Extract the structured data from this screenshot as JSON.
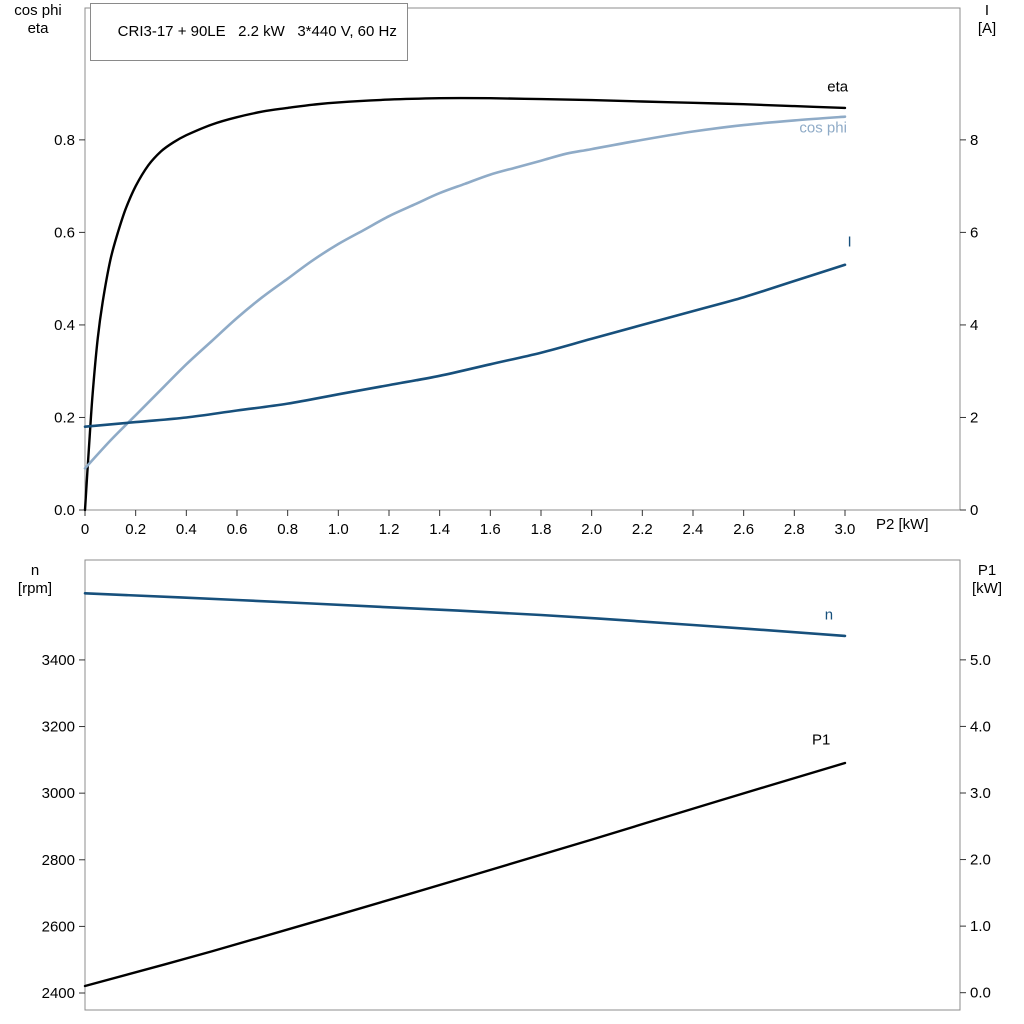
{
  "title_box": {
    "text": "CRI3-17 + 90LE   2.2 kW   3*440 V, 60 Hz"
  },
  "labels": {
    "top_left": [
      "cos phi",
      "eta"
    ],
    "top_right": [
      "I",
      "[A]"
    ],
    "x_axis": "P2 [kW]",
    "bottom_left": [
      "n",
      "[rpm]"
    ],
    "bottom_right": [
      "P1",
      "[kW]"
    ]
  },
  "colors": {
    "black": "#000000",
    "dark_blue": "#17507c",
    "light_blue": "#8fabc7",
    "frame_gray": "#8c8c8c",
    "tick_color": "#333333"
  },
  "chart_data": [
    {
      "type": "line",
      "title": "CRI3-17 + 90LE   2.2 kW   3*440 V, 60 Hz",
      "xlabel": "P2 [kW]",
      "grid": false,
      "x_axis": {
        "min": 0,
        "max": 3.454,
        "tick_labels": [
          "0",
          "0.2",
          "0.4",
          "0.6",
          "0.8",
          "1.0",
          "1.2",
          "1.4",
          "1.6",
          "1.8",
          "2.0",
          "2.2",
          "2.4",
          "2.6",
          "2.8",
          "3.0"
        ]
      },
      "y_left_axis": {
        "label": "cos phi / eta",
        "min": 0,
        "max": 1.085,
        "tick_labels": [
          "0.0",
          "0.2",
          "0.4",
          "0.6",
          "0.8"
        ]
      },
      "y_right_axis": {
        "label": "I [A]",
        "min": 0,
        "max": 10.85,
        "tick_labels": [
          "0",
          "2",
          "4",
          "6",
          "8"
        ]
      },
      "series": [
        {
          "name": "eta",
          "axis": "left",
          "color": "#000000",
          "width": 2.4,
          "label_at": [
            2.93,
            0.905
          ],
          "points": [
            [
              0,
              0
            ],
            [
              0.015,
              0.13
            ],
            [
              0.03,
              0.25
            ],
            [
              0.05,
              0.37
            ],
            [
              0.07,
              0.45
            ],
            [
              0.1,
              0.54
            ],
            [
              0.13,
              0.6
            ],
            [
              0.16,
              0.65
            ],
            [
              0.2,
              0.7
            ],
            [
              0.25,
              0.745
            ],
            [
              0.3,
              0.775
            ],
            [
              0.35,
              0.795
            ],
            [
              0.4,
              0.81
            ],
            [
              0.5,
              0.833
            ],
            [
              0.6,
              0.849
            ],
            [
              0.7,
              0.861
            ],
            [
              0.8,
              0.869
            ],
            [
              0.9,
              0.876
            ],
            [
              1.0,
              0.881
            ],
            [
              1.2,
              0.887
            ],
            [
              1.4,
              0.89
            ],
            [
              1.6,
              0.89
            ],
            [
              1.8,
              0.888
            ],
            [
              2.0,
              0.886
            ],
            [
              2.2,
              0.883
            ],
            [
              2.4,
              0.88
            ],
            [
              2.6,
              0.877
            ],
            [
              2.8,
              0.873
            ],
            [
              3.0,
              0.869
            ]
          ]
        },
        {
          "name": "cos phi",
          "axis": "left",
          "color": "#8fabc7",
          "width": 2.6,
          "label_at": [
            2.82,
            0.816
          ],
          "points": [
            [
              0,
              0.09
            ],
            [
              0.1,
              0.15
            ],
            [
              0.2,
              0.205
            ],
            [
              0.3,
              0.26
            ],
            [
              0.4,
              0.315
            ],
            [
              0.5,
              0.365
            ],
            [
              0.6,
              0.415
            ],
            [
              0.7,
              0.46
            ],
            [
              0.8,
              0.5
            ],
            [
              0.9,
              0.54
            ],
            [
              1.0,
              0.575
            ],
            [
              1.1,
              0.605
            ],
            [
              1.2,
              0.635
            ],
            [
              1.3,
              0.66
            ],
            [
              1.4,
              0.685
            ],
            [
              1.5,
              0.705
            ],
            [
              1.6,
              0.725
            ],
            [
              1.7,
              0.74
            ],
            [
              1.8,
              0.755
            ],
            [
              1.9,
              0.77
            ],
            [
              2.0,
              0.78
            ],
            [
              2.2,
              0.8
            ],
            [
              2.4,
              0.818
            ],
            [
              2.6,
              0.832
            ],
            [
              2.8,
              0.842
            ],
            [
              3.0,
              0.85
            ]
          ]
        },
        {
          "name": "I",
          "axis": "right",
          "color": "#17507c",
          "width": 2.6,
          "label_at": [
            3.01,
            5.7
          ],
          "points": [
            [
              0,
              1.8
            ],
            [
              0.2,
              1.9
            ],
            [
              0.4,
              2.0
            ],
            [
              0.6,
              2.15
            ],
            [
              0.8,
              2.3
            ],
            [
              1.0,
              2.5
            ],
            [
              1.2,
              2.7
            ],
            [
              1.4,
              2.9
            ],
            [
              1.6,
              3.15
            ],
            [
              1.8,
              3.4
            ],
            [
              2.0,
              3.7
            ],
            [
              2.2,
              4.0
            ],
            [
              2.4,
              4.3
            ],
            [
              2.6,
              4.6
            ],
            [
              2.8,
              4.95
            ],
            [
              3.0,
              5.3
            ]
          ]
        }
      ]
    },
    {
      "type": "line",
      "title": "",
      "xlabel": "",
      "grid": false,
      "x_axis": {
        "min": 0,
        "max": 3.454,
        "tick_labels": []
      },
      "y_left_axis": {
        "label": "n [rpm]",
        "min": 2349,
        "max": 3700,
        "tick_labels": [
          "2400",
          "2600",
          "2800",
          "3000",
          "3200",
          "3400"
        ]
      },
      "y_right_axis": {
        "label": "P1 [kW]",
        "min": -0.26,
        "max": 6.5,
        "tick_labels": [
          "0.0",
          "1.0",
          "2.0",
          "3.0",
          "4.0",
          "5.0"
        ]
      },
      "series": [
        {
          "name": "n",
          "axis": "left",
          "color": "#17507c",
          "width": 2.6,
          "label_at": [
            2.92,
            3522
          ],
          "points": [
            [
              0,
              3600
            ],
            [
              0.6,
              3580
            ],
            [
              1.2,
              3558
            ],
            [
              1.8,
              3535
            ],
            [
              2.4,
              3505
            ],
            [
              3.0,
              3472
            ]
          ]
        },
        {
          "name": "P1",
          "axis": "right",
          "color": "#000000",
          "width": 2.4,
          "label_at": [
            2.87,
            3.73
          ],
          "points": [
            [
              0,
              0.1
            ],
            [
              0.5,
              0.62
            ],
            [
              1.0,
              1.17
            ],
            [
              1.5,
              1.73
            ],
            [
              2.0,
              2.3
            ],
            [
              2.5,
              2.88
            ],
            [
              3.0,
              3.45
            ]
          ]
        }
      ]
    }
  ]
}
